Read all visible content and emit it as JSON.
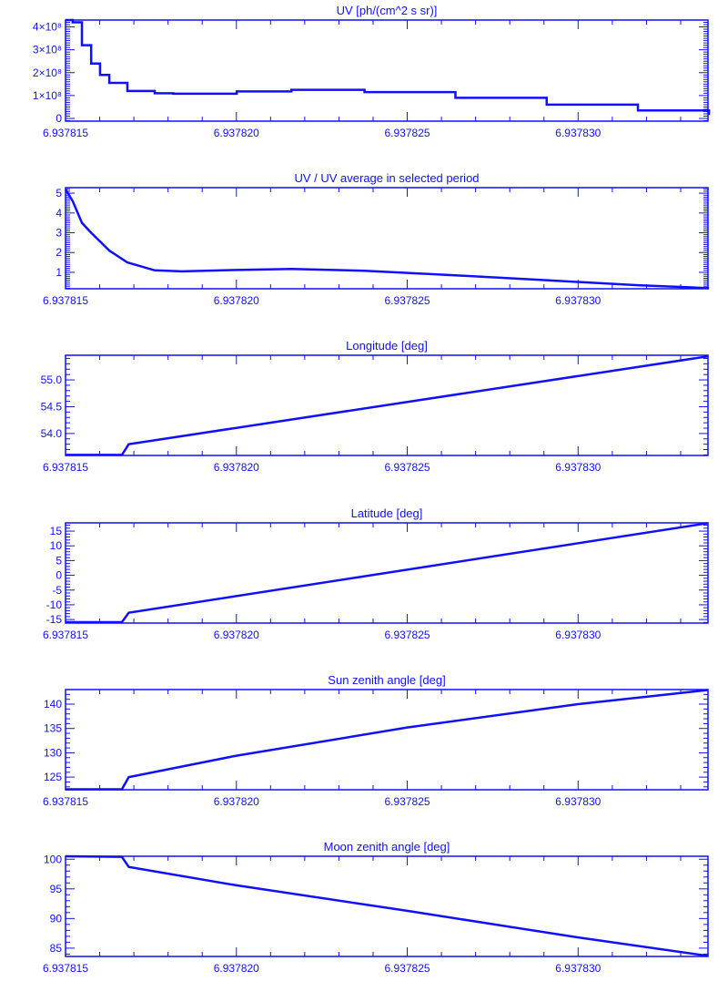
{
  "colors": {
    "line": "#1010ff",
    "background": "#ffffff"
  },
  "chart_data": [
    {
      "type": "line",
      "step": true,
      "title": "UV [ph/(cm^2 s sr)]",
      "xlabel": "",
      "ylabel": "",
      "xlim": [
        6.937815,
        6.9378338
      ],
      "ylim": [
        -12000000,
        430000000
      ],
      "xticks": [
        6.937815,
        6.93782,
        6.937825,
        6.93783
      ],
      "xtick_labels": [
        "6.937815",
        "6.937820",
        "6.937825",
        "6.937830"
      ],
      "yticks": [
        0,
        100000000,
        200000000,
        300000000,
        400000000
      ],
      "ytick_labels": [
        "0",
        "1×10⁸",
        "2×10⁸",
        "3×10⁸",
        "4×10⁸"
      ],
      "x": [
        6.937815,
        6.93781521,
        6.93781548,
        6.93781575,
        6.93781601,
        6.93781628,
        6.93781681,
        6.93781761,
        6.93781815,
        6.93781841,
        6.93782001,
        6.93782161,
        6.93782375,
        6.93782641,
        6.93782908,
        6.93783175,
        6.93783383
      ],
      "y": [
        430000000,
        420000000,
        320000000,
        240000000,
        190000000,
        155000000,
        120000000,
        110000000,
        108000000,
        108000000,
        118000000,
        125000000,
        115000000,
        90000000,
        60000000,
        35000000,
        15000000
      ]
    },
    {
      "type": "line",
      "title": "UV / UV average in selected period",
      "xlim": [
        6.937815,
        6.9378338
      ],
      "ylim": [
        0.17,
        5.28
      ],
      "xticks": [
        6.937815,
        6.93782,
        6.937825,
        6.93783
      ],
      "xtick_labels": [
        "6.937815",
        "6.937820",
        "6.937825",
        "6.937830"
      ],
      "yticks": [
        1,
        2,
        3,
        4,
        5
      ],
      "ytick_labels": [
        "1",
        "2",
        "3",
        "4",
        "5"
      ],
      "x": [
        6.937815,
        6.93781521,
        6.93781548,
        6.93781575,
        6.93781628,
        6.93781681,
        6.93781761,
        6.93781841,
        6.93782001,
        6.93782161,
        6.93782375,
        6.93782641,
        6.93782908,
        6.93783175,
        6.93783383
      ],
      "y": [
        5.2,
        4.6,
        3.5,
        3.0,
        2.1,
        1.5,
        1.1,
        1.05,
        1.12,
        1.17,
        1.08,
        0.85,
        0.6,
        0.35,
        0.2
      ]
    },
    {
      "type": "line",
      "title": "Longitude [deg]",
      "xlim": [
        6.937815,
        6.9378338
      ],
      "ylim": [
        53.59,
        55.46
      ],
      "xticks": [
        6.937815,
        6.93782,
        6.937825,
        6.93783
      ],
      "xtick_labels": [
        "6.937815",
        "6.937820",
        "6.937825",
        "6.937830"
      ],
      "yticks": [
        54.0,
        54.5,
        55.0
      ],
      "ytick_labels": [
        "54.0",
        "54.5",
        "55.0"
      ],
      "x": [
        6.937815,
        6.93781665,
        6.93781685,
        6.9378338
      ],
      "y": [
        53.6,
        53.6,
        53.8,
        55.44
      ]
    },
    {
      "type": "line",
      "title": "Latitude [deg]",
      "xlim": [
        6.937815,
        6.9378338
      ],
      "ylim": [
        -16.2,
        17.8
      ],
      "xticks": [
        6.937815,
        6.93782,
        6.937825,
        6.93783
      ],
      "xtick_labels": [
        "6.937815",
        "6.937820",
        "6.937825",
        "6.937830"
      ],
      "yticks": [
        -15,
        -10,
        -5,
        0,
        5,
        10,
        15
      ],
      "ytick_labels": [
        "-15",
        "-10",
        "-5",
        "0",
        "5",
        "10",
        "15"
      ],
      "x": [
        6.937815,
        6.93781665,
        6.93781685,
        6.9378338
      ],
      "y": [
        -15.9,
        -15.9,
        -12.7,
        17.7
      ]
    },
    {
      "type": "line",
      "title": "Sun zenith angle [deg]",
      "xlim": [
        6.937815,
        6.9378338
      ],
      "ylim": [
        122.4,
        143.0
      ],
      "xticks": [
        6.937815,
        6.93782,
        6.937825,
        6.93783
      ],
      "xtick_labels": [
        "6.937815",
        "6.937820",
        "6.937825",
        "6.937830"
      ],
      "yticks": [
        125,
        130,
        135,
        140
      ],
      "ytick_labels": [
        "125",
        "130",
        "135",
        "140"
      ],
      "x": [
        6.937815,
        6.93781665,
        6.93781685,
        6.93782,
        6.937825,
        6.93783,
        6.9378338
      ],
      "y": [
        122.5,
        122.5,
        125.0,
        129.4,
        135.2,
        140.0,
        142.9
      ]
    },
    {
      "type": "line",
      "title": "Moon zenith angle [deg]",
      "xlim": [
        6.937815,
        6.9378338
      ],
      "ylim": [
        83.6,
        100.5
      ],
      "xticks": [
        6.937815,
        6.93782,
        6.937825,
        6.93783
      ],
      "xtick_labels": [
        "6.937815",
        "6.937820",
        "6.937825",
        "6.937830"
      ],
      "yticks": [
        85,
        90,
        95,
        100
      ],
      "ytick_labels": [
        "85",
        "90",
        "95",
        "100"
      ],
      "x": [
        6.937815,
        6.93781665,
        6.93781685,
        6.93782,
        6.937825,
        6.93783,
        6.9378338
      ],
      "y": [
        100.5,
        100.4,
        98.7,
        95.6,
        91.3,
        86.8,
        83.7
      ]
    }
  ]
}
